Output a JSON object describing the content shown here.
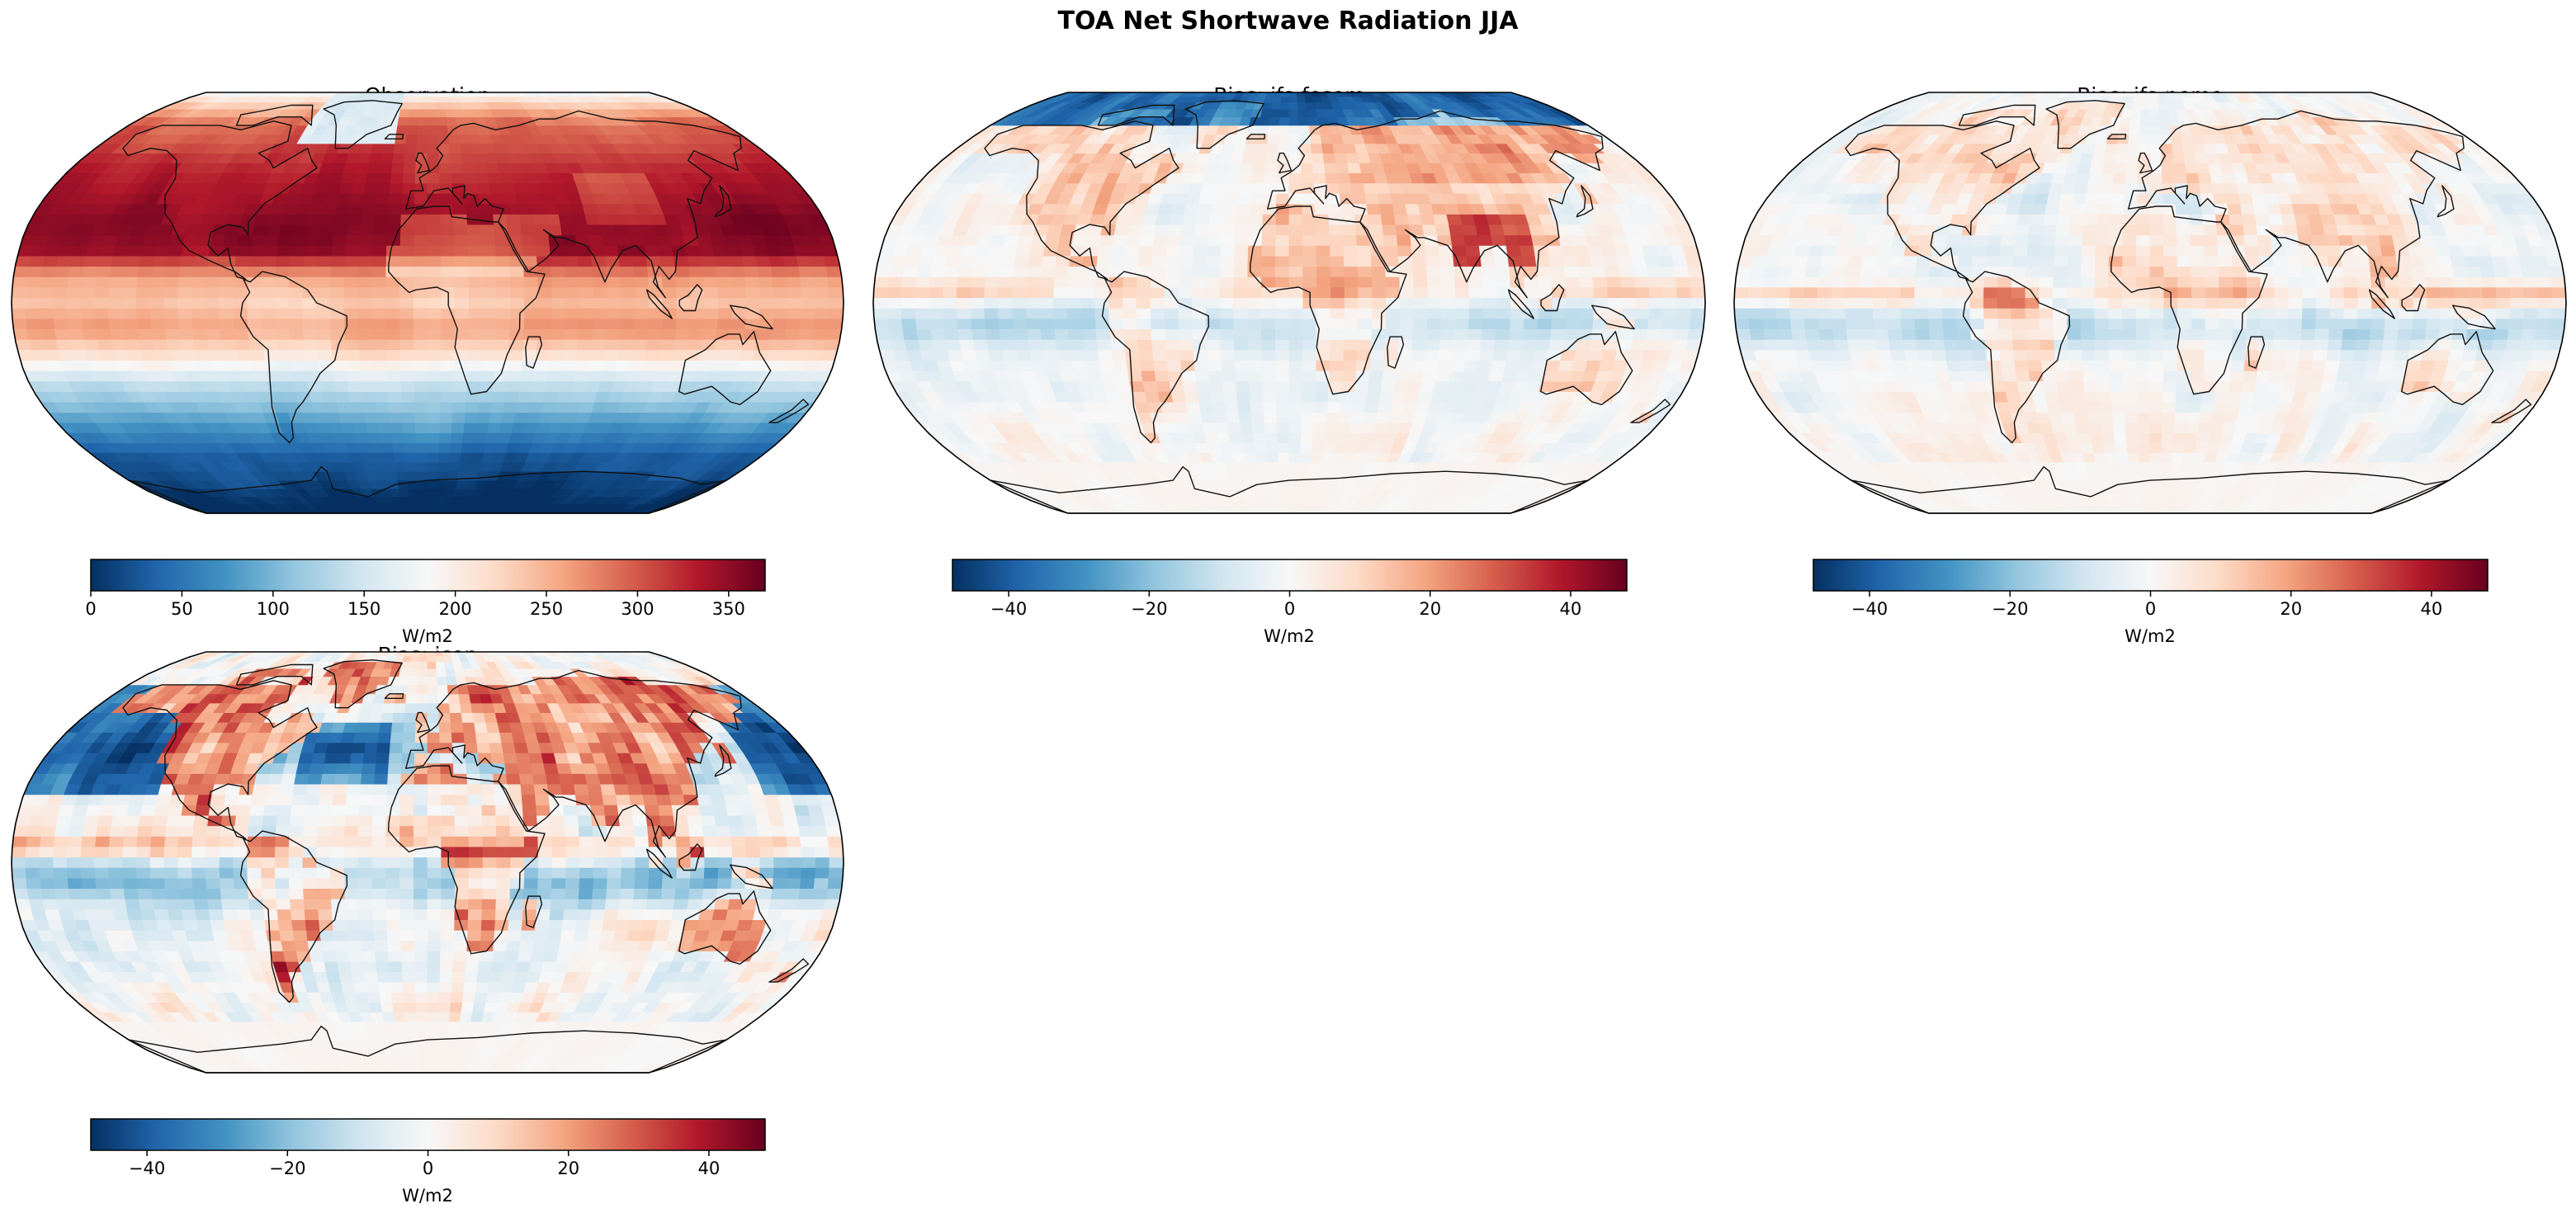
{
  "figure": {
    "title": "TOA Net Shortwave Radiation JJA"
  },
  "chart_data": [
    {
      "type": "heatmap",
      "projection": "Robinson",
      "title": "Observation",
      "colormap": "RdBu_r",
      "colorbar": {
        "label": "W/m2",
        "range": [
          0,
          370
        ],
        "ticks": [
          0,
          50,
          100,
          150,
          200,
          250,
          300,
          350
        ],
        "tick_labels": [
          "0",
          "50",
          "100",
          "150",
          "200",
          "250",
          "300",
          "350"
        ]
      },
      "field_description": "zonal bands",
      "zonal_profile": {
        "lat": [
          90,
          70,
          50,
          30,
          20,
          10,
          0,
          -10,
          -20,
          -30,
          -45,
          -60,
          -90
        ],
        "value": [
          170,
          300,
          330,
          355,
          345,
          260,
          240,
          270,
          220,
          150,
          90,
          30,
          0
        ]
      }
    },
    {
      "type": "heatmap",
      "projection": "Robinson",
      "title": "Bias: ifs-fesom",
      "colormap": "RdBu_r",
      "colorbar": {
        "label": "W/m2",
        "range": [
          -48,
          48
        ],
        "ticks": [
          -40,
          -20,
          0,
          20,
          40
        ],
        "tick_labels": [
          "−40",
          "−20",
          "0",
          "20",
          "40"
        ]
      }
    },
    {
      "type": "heatmap",
      "projection": "Robinson",
      "title": "Bias: ifs-nemo",
      "colormap": "RdBu_r",
      "colorbar": {
        "label": "W/m2",
        "range": [
          -48,
          48
        ],
        "ticks": [
          -40,
          -20,
          0,
          20,
          40
        ],
        "tick_labels": [
          "−40",
          "−20",
          "0",
          "20",
          "40"
        ]
      }
    },
    {
      "type": "heatmap",
      "projection": "Robinson",
      "title": "Bias: icon",
      "colormap": "RdBu_r",
      "colorbar": {
        "label": "W/m2",
        "range": [
          -48,
          48
        ],
        "ticks": [
          -40,
          -20,
          0,
          20,
          40
        ],
        "tick_labels": [
          "−40",
          "−20",
          "0",
          "20",
          "40"
        ]
      }
    }
  ],
  "colors": {
    "cmap_stops": [
      "#053061",
      "#2166ac",
      "#4393c3",
      "#92c5de",
      "#d1e5f0",
      "#f7f7f7",
      "#fddbc7",
      "#f4a582",
      "#d6604d",
      "#b2182b",
      "#67001f"
    ],
    "coast": "#111111"
  }
}
